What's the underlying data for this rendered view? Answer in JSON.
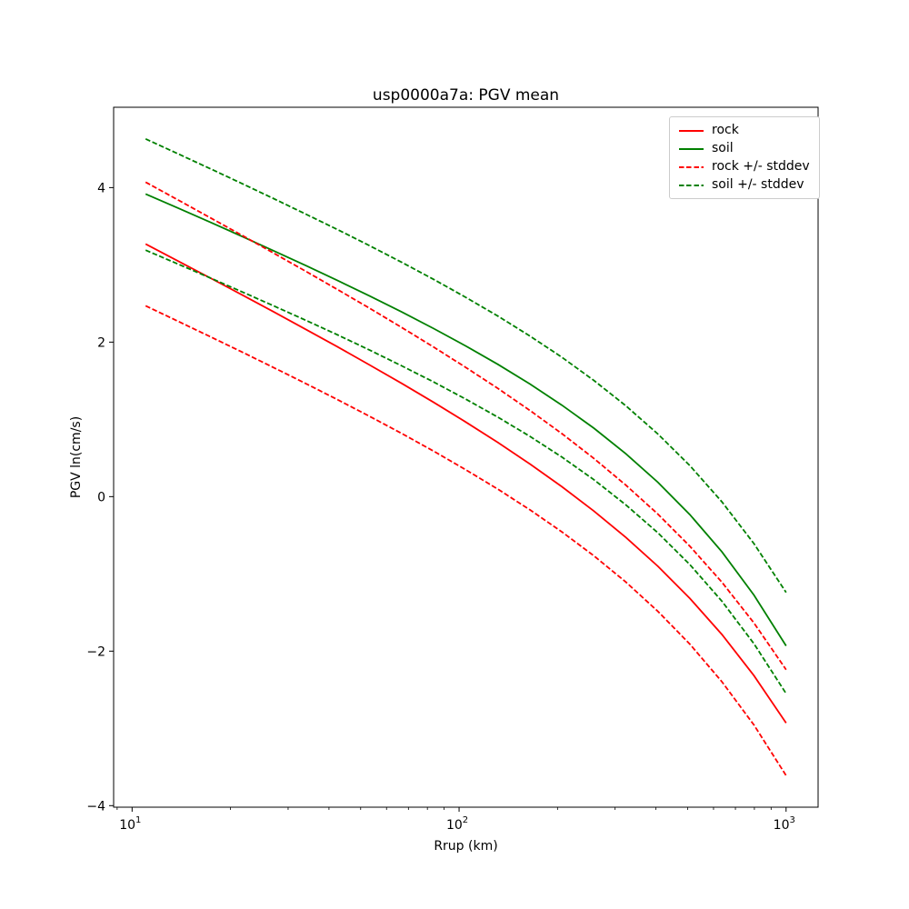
{
  "chart_data": {
    "type": "line",
    "title": "usp0000a7a: PGV mean",
    "xlabel": "Rrup (km)",
    "ylabel": "PGV ln(cm/s)",
    "x_scale": "log",
    "grid": false,
    "xlim": [
      8.78,
      1253
    ],
    "ylim": [
      -4.02,
      5.04
    ],
    "x_major_ticks": [
      {
        "value": 10,
        "base": "10",
        "exp": "1"
      },
      {
        "value": 100,
        "base": "10",
        "exp": "2"
      },
      {
        "value": 1000,
        "base": "10",
        "exp": "3"
      }
    ],
    "x_minor_ticks": [
      9,
      20,
      30,
      40,
      50,
      60,
      70,
      80,
      90,
      200,
      300,
      400,
      500,
      600,
      700,
      800,
      900
    ],
    "y_ticks": [
      {
        "value": -4,
        "label": "−4"
      },
      {
        "value": -2,
        "label": "−2"
      },
      {
        "value": 0,
        "label": "0"
      },
      {
        "value": 2,
        "label": "2"
      },
      {
        "value": 4,
        "label": "4"
      }
    ],
    "colors": {
      "rock": "#ff0000",
      "soil": "#008000"
    },
    "x": [
      11.0,
      13.78,
      17.27,
      21.64,
      27.11,
      33.96,
      42.55,
      53.31,
      66.79,
      83.68,
      104.85,
      131.36,
      164.58,
      206.2,
      258.34,
      323.67,
      405.52,
      508.06,
      636.54,
      797.52,
      1000.0
    ],
    "series": [
      {
        "name": "rock",
        "color": "#ff0000",
        "style": "solid",
        "values": [
          3.27,
          3.053,
          2.834,
          2.614,
          2.391,
          2.166,
          1.937,
          1.703,
          1.465,
          1.219,
          0.965,
          0.701,
          0.423,
          0.129,
          -0.187,
          -0.528,
          -0.902,
          -1.318,
          -1.785,
          -2.316,
          -2.93
        ]
      },
      {
        "name": "soil",
        "color": "#008000",
        "style": "solid",
        "values": [
          3.918,
          3.737,
          3.555,
          3.37,
          3.182,
          2.991,
          2.796,
          2.596,
          2.39,
          2.175,
          1.95,
          1.712,
          1.458,
          1.184,
          0.886,
          0.555,
          0.185,
          -0.234,
          -0.715,
          -1.274,
          -1.931
        ]
      },
      {
        "name": "rock plus stddev",
        "color": "#ff0000",
        "style": "dashed",
        "values": [
          4.07,
          3.843,
          3.614,
          3.384,
          3.152,
          2.917,
          2.679,
          2.437,
          2.189,
          1.935,
          1.673,
          1.401,
          1.116,
          0.816,
          0.495,
          0.149,
          -0.227,
          -0.643,
          -1.108,
          -1.635,
          -2.24
        ]
      },
      {
        "name": "rock minus stddev",
        "color": "#ff0000",
        "style": "dashed",
        "values": [
          2.47,
          2.273,
          2.074,
          1.874,
          1.67,
          1.464,
          1.254,
          1.038,
          0.817,
          0.588,
          0.348,
          0.097,
          -0.17,
          -0.456,
          -0.766,
          -1.106,
          -1.485,
          -1.91,
          -2.396,
          -2.955,
          -3.61
        ]
      },
      {
        "name": "soil plus stddev",
        "color": "#008000",
        "style": "dashed",
        "values": [
          4.63,
          4.44,
          4.248,
          4.054,
          3.857,
          3.658,
          3.455,
          3.247,
          3.033,
          2.811,
          2.58,
          2.337,
          2.08,
          1.804,
          1.504,
          1.176,
          0.81,
          0.4,
          -0.068,
          -0.608,
          -1.24
        ]
      },
      {
        "name": "soil minus stddev",
        "color": "#008000",
        "style": "dashed",
        "values": [
          3.19,
          3.013,
          2.834,
          2.653,
          2.469,
          2.283,
          2.092,
          1.896,
          1.693,
          1.483,
          1.262,
          1.029,
          0.781,
          0.512,
          0.219,
          -0.106,
          -0.469,
          -0.881,
          -1.354,
          -1.903,
          -2.549
        ]
      }
    ],
    "legend": {
      "position": "upper right",
      "items": [
        {
          "label": "rock",
          "color": "#ff0000",
          "style": "solid"
        },
        {
          "label": "soil",
          "color": "#008000",
          "style": "solid"
        },
        {
          "label": "rock +/- stddev",
          "color": "#ff0000",
          "style": "dashed"
        },
        {
          "label": "soil +/- stddev",
          "color": "#008000",
          "style": "dashed"
        }
      ]
    }
  }
}
